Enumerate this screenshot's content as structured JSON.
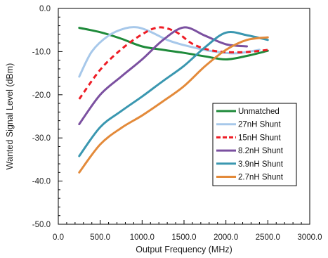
{
  "chart_data": {
    "type": "line",
    "title": "",
    "xlabel": "Output Frequency (MHz)",
    "ylabel": "Wanted Signal Level (dBm)",
    "xlim": [
      0,
      3000
    ],
    "ylim": [
      -50,
      0
    ],
    "x_ticks": [
      "0.0",
      "500.0",
      "1000.0",
      "1500.0",
      "2000.0",
      "2500.0",
      "3000.0"
    ],
    "y_ticks": [
      "0.0",
      "-10.0",
      "-20.0",
      "-30.0",
      "-40.0",
      "-50.0"
    ],
    "grid": false,
    "legend_position": "right",
    "series": [
      {
        "name": "Unmatched",
        "color": "#1e8a3a",
        "dash": "solid",
        "points": [
          [
            250,
            -4.5
          ],
          [
            500,
            -5.5
          ],
          [
            750,
            -7.0
          ],
          [
            1000,
            -8.8
          ],
          [
            1250,
            -9.6
          ],
          [
            1500,
            -10.3
          ],
          [
            1750,
            -11.1
          ],
          [
            2000,
            -11.8
          ],
          [
            2250,
            -11.0
          ],
          [
            2500,
            -9.8
          ]
        ]
      },
      {
        "name": "27nH Shunt",
        "color": "#a7c8ea",
        "dash": "solid",
        "points": [
          [
            250,
            -15.8
          ],
          [
            400,
            -10.0
          ],
          [
            600,
            -6.3
          ],
          [
            800,
            -4.6
          ],
          [
            950,
            -4.4
          ],
          [
            1100,
            -5.4
          ],
          [
            1300,
            -7.3
          ],
          [
            1500,
            -8.5
          ],
          [
            1800,
            -9.8
          ],
          [
            2100,
            -10.4
          ],
          [
            2400,
            -9.6
          ]
        ]
      },
      {
        "name": "15nH Shunt",
        "color": "#ee1c25",
        "dash": "dash",
        "points": [
          [
            250,
            -21.0
          ],
          [
            500,
            -14.2
          ],
          [
            750,
            -9.5
          ],
          [
            1000,
            -6.0
          ],
          [
            1200,
            -4.4
          ],
          [
            1400,
            -5.4
          ],
          [
            1600,
            -8.2
          ],
          [
            1800,
            -9.6
          ],
          [
            2000,
            -10.1
          ],
          [
            2250,
            -10.1
          ],
          [
            2500,
            -9.6
          ]
        ]
      },
      {
        "name": "8.2nH Shunt",
        "color": "#7b50a0",
        "dash": "solid",
        "points": [
          [
            250,
            -26.8
          ],
          [
            500,
            -20.0
          ],
          [
            750,
            -15.8
          ],
          [
            1000,
            -11.8
          ],
          [
            1250,
            -7.3
          ],
          [
            1500,
            -4.4
          ],
          [
            1750,
            -6.3
          ],
          [
            2000,
            -8.3
          ],
          [
            2250,
            -8.8
          ]
        ]
      },
      {
        "name": "3.9nH Shunt",
        "color": "#3a97b0",
        "dash": "solid",
        "points": [
          [
            250,
            -34.2
          ],
          [
            500,
            -27.5
          ],
          [
            750,
            -23.8
          ],
          [
            1000,
            -20.4
          ],
          [
            1250,
            -16.8
          ],
          [
            1500,
            -13.3
          ],
          [
            1750,
            -9.0
          ],
          [
            2000,
            -5.6
          ],
          [
            2250,
            -6.2
          ],
          [
            2500,
            -7.3
          ]
        ]
      },
      {
        "name": "2.7nH Shunt",
        "color": "#e38a3a",
        "dash": "solid",
        "points": [
          [
            250,
            -38.0
          ],
          [
            500,
            -31.5
          ],
          [
            750,
            -27.7
          ],
          [
            1000,
            -24.8
          ],
          [
            1250,
            -21.5
          ],
          [
            1500,
            -18.0
          ],
          [
            1750,
            -13.4
          ],
          [
            2000,
            -9.6
          ],
          [
            2250,
            -7.3
          ],
          [
            2500,
            -6.7
          ]
        ]
      }
    ]
  }
}
